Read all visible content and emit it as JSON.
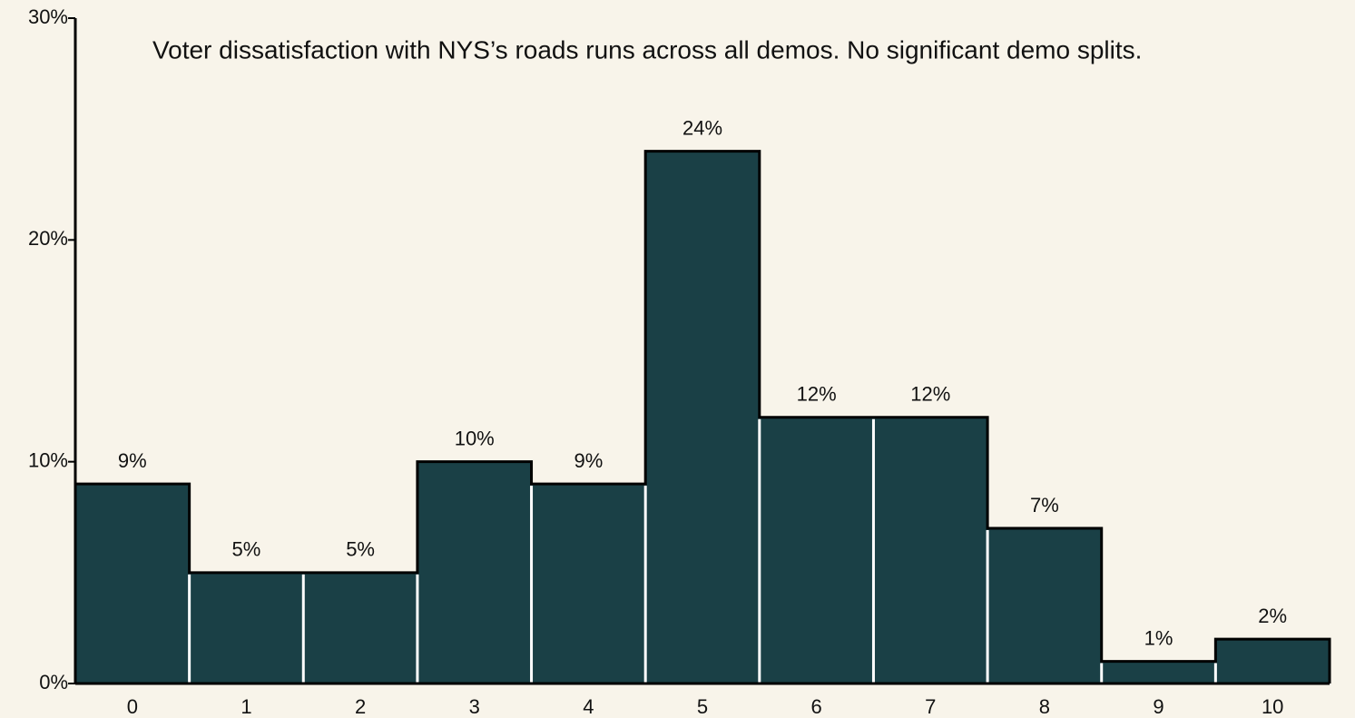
{
  "chart_data": {
    "type": "bar",
    "title": "Voter dissatisfaction with NYS’s roads runs across all demos. No significant demo splits.",
    "categories": [
      "0",
      "1",
      "2",
      "3",
      "4",
      "5",
      "6",
      "7",
      "8",
      "9",
      "10"
    ],
    "values": [
      9,
      5,
      5,
      10,
      9,
      24,
      12,
      12,
      7,
      1,
      2
    ],
    "value_labels": [
      "9%",
      "5%",
      "5%",
      "10%",
      "9%",
      "24%",
      "12%",
      "12%",
      "7%",
      "1%",
      "2%"
    ],
    "color": "#1a4046",
    "ylim": [
      0,
      30
    ],
    "yticks": [
      {
        "value": 0,
        "label": "0%"
      },
      {
        "value": 10,
        "label": "10%"
      },
      {
        "value": 20,
        "label": "20%"
      },
      {
        "value": 30,
        "label": "30%"
      }
    ]
  }
}
